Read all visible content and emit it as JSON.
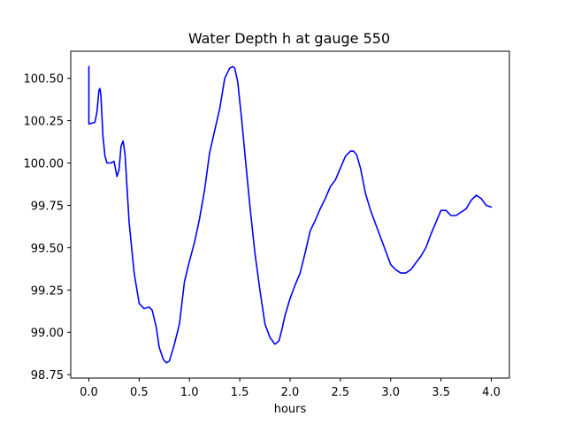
{
  "chart_data": {
    "type": "line",
    "title": "Water Depth h at gauge 550",
    "xlabel": "hours",
    "ylabel": "",
    "xlim": [
      -0.18,
      4.18
    ],
    "ylim": [
      98.73,
      100.66
    ],
    "grid": false,
    "xticks": [
      0.0,
      0.5,
      1.0,
      1.5,
      2.0,
      2.5,
      3.0,
      3.5,
      4.0
    ],
    "xtick_labels": [
      "0.0",
      "0.5",
      "1.0",
      "1.5",
      "2.0",
      "2.5",
      "3.0",
      "3.5",
      "4.0"
    ],
    "yticks": [
      98.75,
      99.0,
      99.25,
      99.5,
      99.75,
      100.0,
      100.25,
      100.5
    ],
    "ytick_labels": [
      "98.75",
      "99.00",
      "99.25",
      "99.50",
      "99.75",
      "100.00",
      "100.25",
      "100.50"
    ],
    "series": [
      {
        "color": "#0000ff",
        "x": [
          0.0,
          0.0,
          0.0,
          0.06,
          0.08,
          0.1,
          0.11,
          0.12,
          0.14,
          0.16,
          0.18,
          0.22,
          0.25,
          0.28,
          0.3,
          0.32,
          0.34,
          0.36,
          0.38,
          0.4,
          0.45,
          0.5,
          0.55,
          0.6,
          0.63,
          0.67,
          0.7,
          0.74,
          0.77,
          0.8,
          0.85,
          0.9,
          0.95,
          1.0,
          1.05,
          1.1,
          1.15,
          1.2,
          1.25,
          1.3,
          1.35,
          1.4,
          1.43,
          1.45,
          1.48,
          1.52,
          1.56,
          1.6,
          1.65,
          1.7,
          1.75,
          1.8,
          1.85,
          1.89,
          1.92,
          1.95,
          2.0,
          2.05,
          2.1,
          2.15,
          2.2,
          2.25,
          2.3,
          2.35,
          2.4,
          2.45,
          2.5,
          2.55,
          2.6,
          2.63,
          2.66,
          2.7,
          2.75,
          2.8,
          2.85,
          2.9,
          2.95,
          3.0,
          3.05,
          3.1,
          3.15,
          3.2,
          3.25,
          3.3,
          3.35,
          3.4,
          3.45,
          3.5,
          3.55,
          3.6,
          3.65,
          3.7,
          3.75,
          3.8,
          3.85,
          3.9,
          3.95,
          4.0
        ],
        "y": [
          100.57,
          100.56,
          100.23,
          100.24,
          100.3,
          100.43,
          100.44,
          100.4,
          100.16,
          100.04,
          100.0,
          100.0,
          100.01,
          99.92,
          99.96,
          100.1,
          100.13,
          100.05,
          99.85,
          99.65,
          99.35,
          99.17,
          99.14,
          99.15,
          99.13,
          99.03,
          98.91,
          98.84,
          98.82,
          98.83,
          98.93,
          99.05,
          99.3,
          99.42,
          99.53,
          99.67,
          99.84,
          100.06,
          100.19,
          100.32,
          100.5,
          100.56,
          100.57,
          100.56,
          100.48,
          100.25,
          100.0,
          99.75,
          99.47,
          99.25,
          99.05,
          98.97,
          98.93,
          98.95,
          99.02,
          99.1,
          99.2,
          99.28,
          99.35,
          99.47,
          99.6,
          99.66,
          99.73,
          99.79,
          99.86,
          99.9,
          99.97,
          100.04,
          100.07,
          100.07,
          100.05,
          99.97,
          99.82,
          99.72,
          99.64,
          99.56,
          99.48,
          99.4,
          99.37,
          99.35,
          99.35,
          99.37,
          99.41,
          99.45,
          99.5,
          99.58,
          99.65,
          99.72,
          99.72,
          99.69,
          99.69,
          99.71,
          99.73,
          99.78,
          99.81,
          99.79,
          99.75,
          99.74
        ]
      }
    ]
  }
}
